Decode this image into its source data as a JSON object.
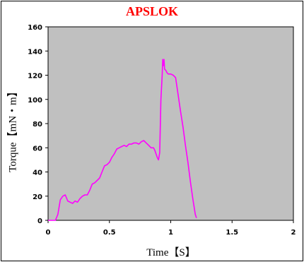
{
  "chart_data": {
    "type": "line",
    "title": "APSLOK",
    "xlabel": "Time【S】",
    "ylabel": "Torque【mN・m】",
    "xlim": [
      0,
      2
    ],
    "ylim": [
      0,
      160
    ],
    "xticks": [
      0,
      0.5,
      1,
      1.5,
      2
    ],
    "xtick_labels": [
      "0",
      "0.5",
      "1",
      "1.5",
      "2"
    ],
    "yticks": [
      0,
      20,
      40,
      60,
      80,
      100,
      120,
      140,
      160
    ],
    "ytick_labels": [
      "0",
      "20",
      "40",
      "60",
      "80",
      "100",
      "120",
      "140",
      "160"
    ],
    "grid": false,
    "plot_background": "#c0c0c0",
    "series": [
      {
        "color": "#ff00ff",
        "points": [
          [
            0.0,
            0
          ],
          [
            0.06,
            0
          ],
          [
            0.08,
            5
          ],
          [
            0.1,
            17
          ],
          [
            0.12,
            20
          ],
          [
            0.14,
            21
          ],
          [
            0.16,
            16
          ],
          [
            0.18,
            15
          ],
          [
            0.2,
            14
          ],
          [
            0.22,
            16
          ],
          [
            0.24,
            15
          ],
          [
            0.26,
            18
          ],
          [
            0.28,
            20
          ],
          [
            0.3,
            21
          ],
          [
            0.32,
            21
          ],
          [
            0.34,
            25
          ],
          [
            0.36,
            30
          ],
          [
            0.38,
            31
          ],
          [
            0.4,
            33
          ],
          [
            0.42,
            35
          ],
          [
            0.44,
            40
          ],
          [
            0.46,
            45
          ],
          [
            0.48,
            46
          ],
          [
            0.5,
            48
          ],
          [
            0.52,
            52
          ],
          [
            0.54,
            55
          ],
          [
            0.56,
            59
          ],
          [
            0.58,
            60
          ],
          [
            0.6,
            61
          ],
          [
            0.62,
            62
          ],
          [
            0.64,
            61
          ],
          [
            0.66,
            63
          ],
          [
            0.68,
            63
          ],
          [
            0.7,
            64
          ],
          [
            0.72,
            64
          ],
          [
            0.74,
            63
          ],
          [
            0.76,
            65
          ],
          [
            0.78,
            66
          ],
          [
            0.8,
            64
          ],
          [
            0.82,
            62
          ],
          [
            0.84,
            60
          ],
          [
            0.86,
            60
          ],
          [
            0.87,
            58
          ],
          [
            0.88,
            55
          ],
          [
            0.89,
            52
          ],
          [
            0.9,
            50
          ],
          [
            0.91,
            56
          ],
          [
            0.92,
            100
          ],
          [
            0.93,
            120
          ],
          [
            0.935,
            133
          ],
          [
            0.94,
            128
          ],
          [
            0.945,
            133
          ],
          [
            0.95,
            125
          ],
          [
            0.96,
            124
          ],
          [
            0.97,
            122
          ],
          [
            0.98,
            121
          ],
          [
            1.0,
            121
          ],
          [
            1.02,
            120
          ],
          [
            1.04,
            118
          ],
          [
            1.06,
            104
          ],
          [
            1.08,
            90
          ],
          [
            1.1,
            77
          ],
          [
            1.12,
            62
          ],
          [
            1.14,
            48
          ],
          [
            1.16,
            32
          ],
          [
            1.18,
            18
          ],
          [
            1.2,
            5
          ],
          [
            1.21,
            2
          ]
        ]
      }
    ]
  }
}
